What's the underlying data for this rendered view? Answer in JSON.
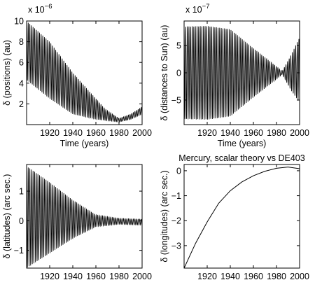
{
  "chart_data": [
    {
      "id": "positions",
      "type": "line",
      "title": "",
      "multiplier_label": "x 10",
      "multiplier_exp": "−6",
      "xlabel": "Time (years)",
      "ylabel": "δ (positions) (au)",
      "xlim": [
        1900,
        2000
      ],
      "ylim": [
        0,
        10
      ],
      "xticks": [
        1920,
        1940,
        1960,
        1980,
        2000
      ],
      "yticks": [
        2,
        4,
        6,
        8,
        10
      ],
      "signal": {
        "kind": "oscillating_band",
        "period_years": 1.4,
        "upper_envelope": [
          [
            1900,
            10.0
          ],
          [
            1920,
            8.0
          ],
          [
            1940,
            5.0
          ],
          [
            1960,
            2.5
          ],
          [
            1968,
            1.5
          ],
          [
            1980,
            0.6
          ],
          [
            1990,
            1.0
          ],
          [
            2000,
            1.7
          ]
        ],
        "lower_envelope": [
          [
            1900,
            4.3
          ],
          [
            1920,
            2.5
          ],
          [
            1940,
            1.0
          ],
          [
            1960,
            0.5
          ],
          [
            1980,
            0.25
          ],
          [
            1990,
            0.5
          ],
          [
            2000,
            1.0
          ]
        ]
      },
      "grid": false
    },
    {
      "id": "distances",
      "type": "line",
      "title": "",
      "multiplier_label": "x 10",
      "multiplier_exp": "−7",
      "xlabel": "Time (years)",
      "ylabel": "δ (distances to Sun) (au)",
      "xlim": [
        1900,
        2000
      ],
      "ylim": [
        -9.5,
        9.5
      ],
      "xticks": [
        1920,
        1940,
        1960,
        1980,
        2000
      ],
      "yticks": [
        -5,
        0,
        5
      ],
      "signal": {
        "kind": "oscillating_band",
        "period_years": 1.4,
        "upper_envelope": [
          [
            1900,
            8.5
          ],
          [
            1920,
            8.6
          ],
          [
            1940,
            8.0
          ],
          [
            1960,
            4.5
          ],
          [
            1975,
            2.0
          ],
          [
            1985,
            0.3
          ],
          [
            1992,
            3.0
          ],
          [
            2000,
            6.5
          ]
        ],
        "lower_envelope": [
          [
            1900,
            -8.5
          ],
          [
            1920,
            -8.6
          ],
          [
            1940,
            -8.0
          ],
          [
            1960,
            -4.5
          ],
          [
            1975,
            -2.0
          ],
          [
            1985,
            -0.3
          ],
          [
            1992,
            -3.0
          ],
          [
            2000,
            -5.5
          ]
        ]
      },
      "grid": false
    },
    {
      "id": "latitudes",
      "type": "line",
      "title": "",
      "xlabel": "",
      "ylabel": "δ (latitudes) (arc sec.)",
      "xlim": [
        1900,
        2000
      ],
      "ylim": [
        -1.6,
        1.9
      ],
      "xticks": [
        1920,
        1940,
        1960,
        1980,
        2000
      ],
      "yticks": [
        -1,
        0,
        1
      ],
      "signal": {
        "kind": "oscillating_band",
        "period_years": 1.4,
        "upper_envelope": [
          [
            1900,
            1.85
          ],
          [
            1920,
            1.3
          ],
          [
            1940,
            0.7
          ],
          [
            1960,
            0.2
          ],
          [
            1980,
            0.08
          ],
          [
            2000,
            0.05
          ]
        ],
        "lower_envelope": [
          [
            1900,
            -1.6
          ],
          [
            1920,
            -1.1
          ],
          [
            1940,
            -0.6
          ],
          [
            1960,
            -0.2
          ],
          [
            1980,
            -0.12
          ],
          [
            2000,
            -0.15
          ]
        ]
      },
      "grid": false
    },
    {
      "id": "longitudes",
      "type": "line",
      "title": "Mercury, scalar theory vs DE403",
      "xlabel": "",
      "ylabel": "δ (longitudes) (arc sec.)",
      "xlim": [
        1900,
        2000
      ],
      "ylim": [
        -3.9,
        0.25
      ],
      "xticks": [
        1920,
        1940,
        1960,
        1980,
        2000
      ],
      "yticks": [
        -3,
        -2,
        -1,
        0
      ],
      "x": [
        1900,
        1910,
        1920,
        1930,
        1940,
        1950,
        1960,
        1970,
        1980,
        1990,
        2000
      ],
      "values": [
        -3.9,
        -2.9,
        -2.05,
        -1.3,
        -0.8,
        -0.45,
        -0.2,
        -0.02,
        0.1,
        0.15,
        0.08
      ],
      "grid": false
    }
  ]
}
